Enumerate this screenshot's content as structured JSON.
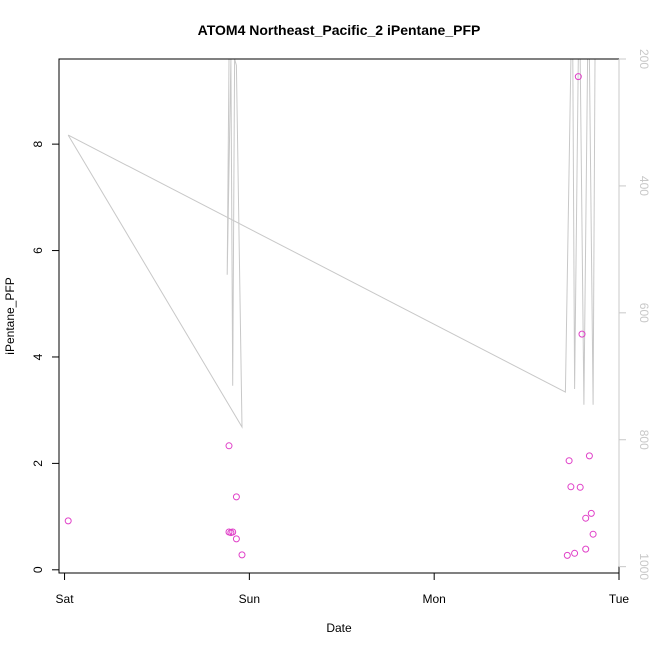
{
  "chart_data": {
    "type": "scatter",
    "title": "ATOM4 Northeast_Pacific_2 iPentane_PFP",
    "xlabel": "Date",
    "ylabel": "iPentane_PFP",
    "x_ticks": [
      "Sat",
      "Sun",
      "Mon",
      "Tue"
    ],
    "xlim_days": [
      -0.03,
      3.0
    ],
    "ylim": [
      -0.06,
      9.6
    ],
    "y_ticks": [
      0,
      2,
      4,
      6,
      8
    ],
    "y2_ticks": [
      200,
      400,
      600,
      800,
      1000
    ],
    "y2lim": [
      1010,
      200
    ],
    "series": [
      {
        "kind": "points",
        "color": "#e040c8",
        "points": [
          {
            "x": 0.02,
            "y": 0.92
          },
          {
            "x": 0.89,
            "y": 2.33
          },
          {
            "x": 0.93,
            "y": 1.37
          },
          {
            "x": 0.89,
            "y": 0.71
          },
          {
            "x": 0.9,
            "y": 0.7
          },
          {
            "x": 0.91,
            "y": 0.71
          },
          {
            "x": 0.93,
            "y": 0.58
          },
          {
            "x": 0.96,
            "y": 0.28
          },
          {
            "x": 2.72,
            "y": 0.27
          },
          {
            "x": 2.76,
            "y": 0.31
          },
          {
            "x": 2.73,
            "y": 2.05
          },
          {
            "x": 2.74,
            "y": 1.56
          },
          {
            "x": 2.78,
            "y": 9.27
          },
          {
            "x": 2.8,
            "y": 4.43
          },
          {
            "x": 2.79,
            "y": 1.55
          },
          {
            "x": 2.82,
            "y": 0.39
          },
          {
            "x": 2.84,
            "y": 2.14
          },
          {
            "x": 2.82,
            "y": 0.97
          },
          {
            "x": 2.85,
            "y": 1.06
          },
          {
            "x": 2.86,
            "y": 0.67
          }
        ]
      },
      {
        "kind": "line",
        "axis": "right",
        "color": "#c8c8c8",
        "points": [
          {
            "x": 0.02,
            "y": 320
          },
          {
            "x": 0.96,
            "y": 780
          },
          {
            "x": 0.93,
            "y": 210
          },
          {
            "x": 0.92,
            "y": 200
          },
          {
            "x": 0.91,
            "y": 715
          },
          {
            "x": 0.9,
            "y": 200
          },
          {
            "x": 0.89,
            "y": 200
          },
          {
            "x": 0.88,
            "y": 540
          },
          {
            "x": 0.9,
            "y": 200
          },
          {
            "x": 0.93,
            "y": 200
          },
          {
            "x": 0.96,
            "y": 200
          }
        ]
      },
      {
        "kind": "line",
        "axis": "right",
        "color": "#c8c8c8",
        "points": [
          {
            "x": 0.02,
            "y": 320
          },
          {
            "x": 2.71,
            "y": 725
          },
          {
            "x": 2.74,
            "y": 200
          },
          {
            "x": 2.75,
            "y": 200
          },
          {
            "x": 2.76,
            "y": 720
          },
          {
            "x": 2.78,
            "y": 200
          },
          {
            "x": 2.79,
            "y": 200
          },
          {
            "x": 2.81,
            "y": 745
          },
          {
            "x": 2.83,
            "y": 200
          },
          {
            "x": 2.84,
            "y": 200
          },
          {
            "x": 2.86,
            "y": 745
          },
          {
            "x": 2.87,
            "y": 200
          }
        ]
      }
    ]
  }
}
